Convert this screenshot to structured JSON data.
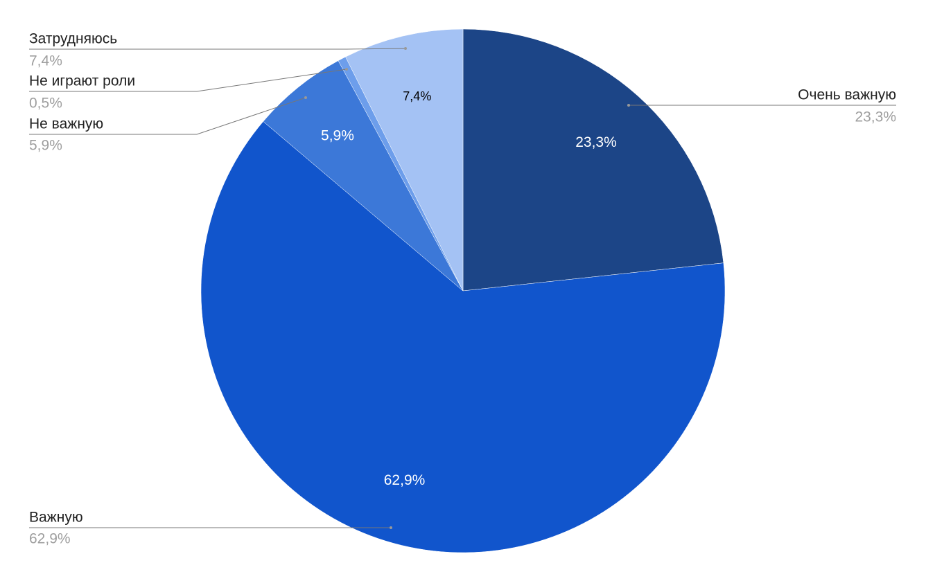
{
  "chart_data": {
    "type": "pie",
    "categories": [
      "Очень важную",
      "Важную",
      "Не важную",
      "Не играют роли",
      "Затрудняюсь"
    ],
    "values": [
      23.3,
      62.9,
      5.9,
      0.5,
      7.4
    ],
    "value_labels": [
      "23,3%",
      "62,9%",
      "5,9%",
      "0,5%",
      "7,4%"
    ],
    "colors": [
      "#1c4587",
      "#1155cc",
      "#3c78d8",
      "#6d9eeb",
      "#a4c2f4"
    ]
  }
}
